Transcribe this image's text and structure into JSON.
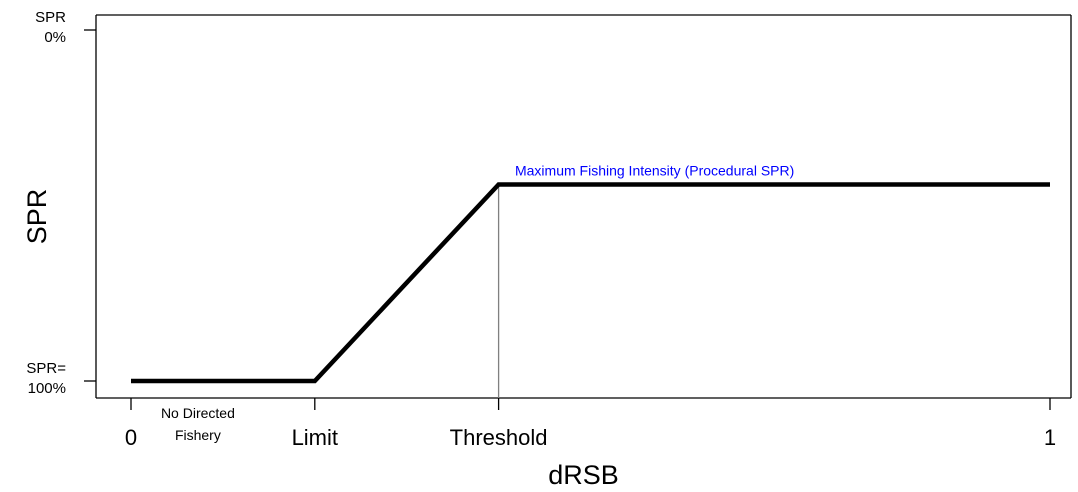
{
  "chart_data": {
    "type": "line",
    "xlabel": "dRSB",
    "ylabel": "SPR",
    "x_ticks": [
      {
        "value": 0,
        "label": "0",
        "color": "#000000"
      },
      {
        "value": 0.2,
        "label": "Limit",
        "color": "#000000"
      },
      {
        "value": 0.4,
        "label": "Threshold",
        "color": "#0000ff"
      },
      {
        "value": 1,
        "label": "1",
        "color": "#000000"
      }
    ],
    "y_ticks": [
      {
        "value": 0,
        "label_line1": "SPR",
        "label_line2": "0%"
      },
      {
        "value": 1,
        "label_line1": "SPR=",
        "label_line2": "100%"
      }
    ],
    "xlim": [
      0,
      1
    ],
    "ylim": [
      0,
      1
    ],
    "y_inverted": true,
    "series": [
      {
        "x": [
          0,
          0.2,
          0.4,
          1
        ],
        "y": [
          1,
          1,
          0.44,
          0.44
        ],
        "color": "#000000"
      }
    ],
    "reference_lines": [
      {
        "x": 0.4,
        "y_from": 0.44,
        "y_to": 1.05,
        "color": "#808080"
      }
    ],
    "annotations": [
      {
        "text": "Maximum Fishing Intensity (Procedural SPR)",
        "x": 0.42,
        "y": 0.44,
        "color": "#0000ff"
      },
      {
        "text_line1": "No Directed",
        "text_line2": "Fishery",
        "x": 0.1,
        "color": "#000000"
      }
    ],
    "grid": false
  }
}
